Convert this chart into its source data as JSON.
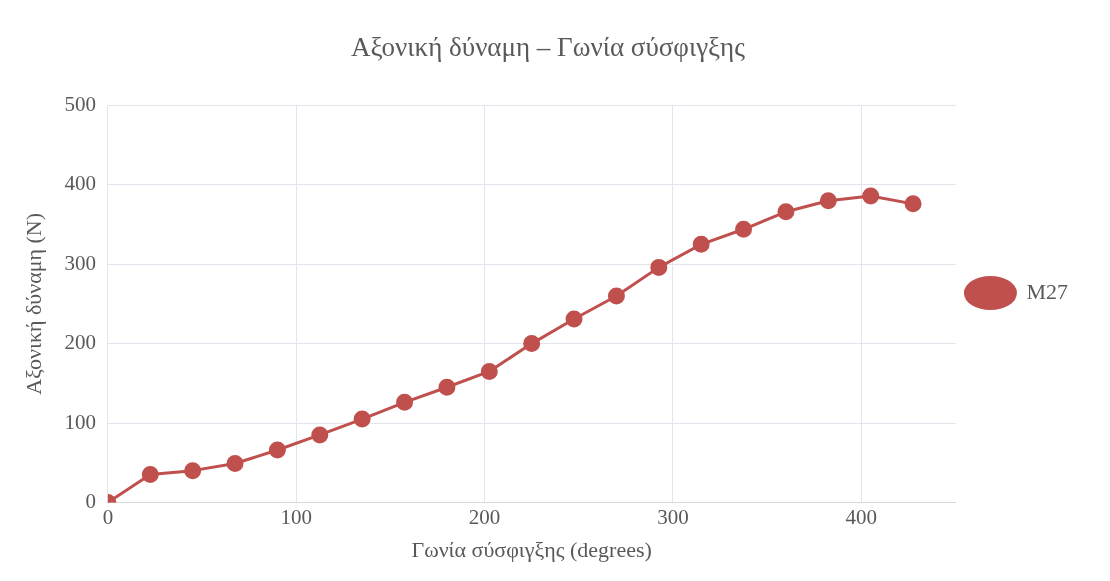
{
  "chart_data": {
    "type": "line",
    "title": "Αξονική δύναμη – Γωνία σύσφιγξης",
    "xlabel": "Γωνία σύσφιγξης (degrees)",
    "ylabel": "Αξονική δύναμη (N)",
    "x": [
      0,
      22.5,
      45,
      67.5,
      90,
      112.5,
      135,
      157.5,
      180,
      202.5,
      225,
      247.5,
      270,
      292.5,
      315,
      337.5,
      360,
      382.5,
      405,
      427.5
    ],
    "series": [
      {
        "name": "M27",
        "color": "#c0504d",
        "values": [
          0,
          35,
          40,
          49,
          66,
          85,
          105,
          126,
          145,
          165,
          200,
          231,
          260,
          296,
          325,
          344,
          366,
          380,
          386,
          376
        ]
      }
    ],
    "xlim": [
      0,
      450
    ],
    "xticks": [
      0,
      100,
      200,
      300,
      400
    ],
    "ylim": [
      0,
      500
    ],
    "yticks": [
      0,
      100,
      200,
      300,
      400,
      500
    ],
    "grid": true,
    "legend": "right",
    "marker": "circle",
    "line_style": "solid"
  }
}
